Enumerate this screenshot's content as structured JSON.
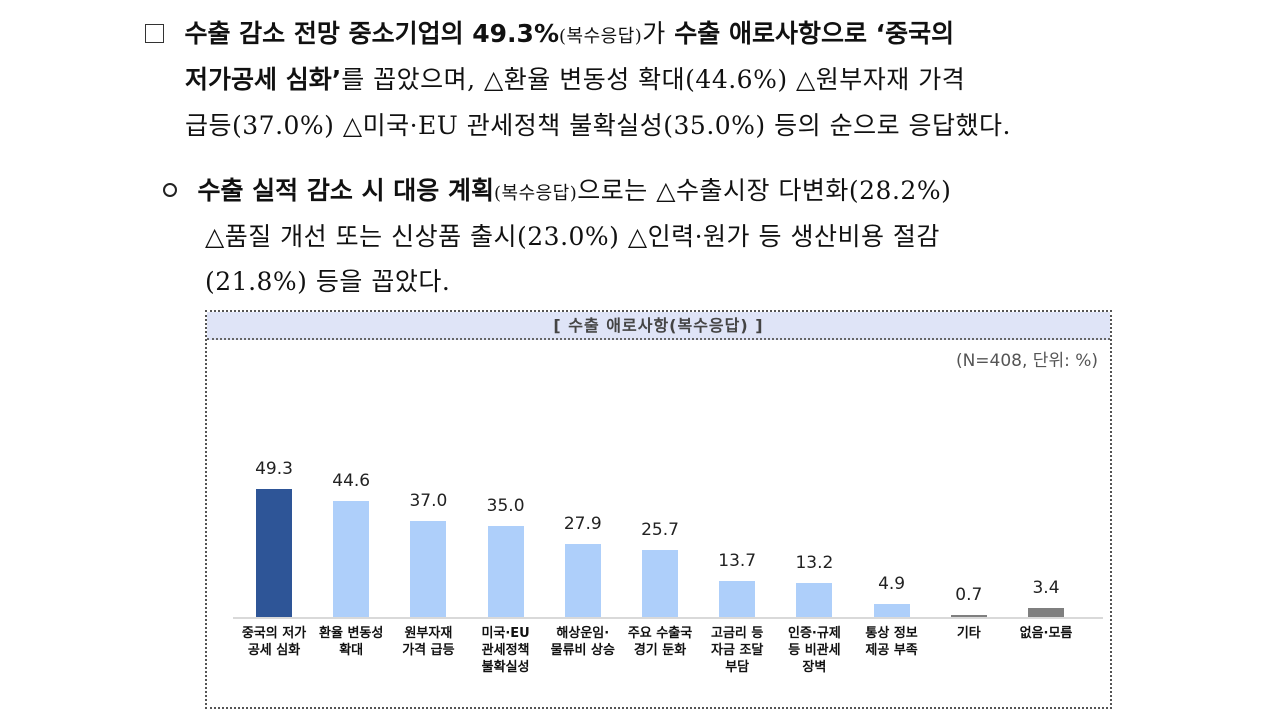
{
  "paragraph1": {
    "bullet": "box-bullet",
    "line1": {
      "bold1": "수출 감소 전망 중소기업의 49.3%",
      "small1": "(복수응답)",
      "normal1": "가 ",
      "bold2": "수출 애로사항으로 ‘중국의"
    },
    "line2": {
      "bold1": "저가공세 심화’",
      "normal1": "를 꼽았으며, △환율 변동성 확대(44.6%) △원부자재 가격"
    },
    "line3": {
      "normal1": "급등(37.0%) △미국·EU 관세정책 불확실성(35.0%) 등의 순으로 응답했다."
    }
  },
  "paragraph2": {
    "bullet": "circle-bullet",
    "line1": {
      "bold1": "수출 실적 감소 시 대응 계획",
      "small1": "(복수응답)",
      "normal1": "으로는 △수출시장 다변화(28.2%)"
    },
    "line2": {
      "normal1": "△품질 개선 또는 신상품 출시(23.0%) △인력·원가 등 생산비용 절감"
    },
    "line3": {
      "normal1": "(21.8%) 등을 꼽았다."
    }
  },
  "chart": {
    "header": "[ 수출 애로사항(복수응답) ]",
    "note": "(N=408, 단위: %)",
    "colors": {
      "highlight": "#2e5597",
      "normal": "#aecffa",
      "other": "#7f7f7f"
    },
    "bars": [
      {
        "label": "중국의 저가\n공세 심화",
        "value": "49.3",
        "color": "#2e5597"
      },
      {
        "label": "환율 변동성\n확대",
        "value": "44.6",
        "color": "#aecffa"
      },
      {
        "label": "원부자재\n가격 급등",
        "value": "37.0",
        "color": "#aecffa"
      },
      {
        "label": "미국·EU\n관세정책\n불확실성",
        "value": "35.0",
        "color": "#aecffa"
      },
      {
        "label": "해상운임·\n물류비 상승",
        "value": "27.9",
        "color": "#aecffa"
      },
      {
        "label": "주요 수출국\n경기 둔화",
        "value": "25.7",
        "color": "#aecffa"
      },
      {
        "label": "고금리 등\n자금 조달\n부담",
        "value": "13.7",
        "color": "#aecffa"
      },
      {
        "label": "인증·규제\n등 비관세\n장벽",
        "value": "13.2",
        "color": "#aecffa"
      },
      {
        "label": "통상 정보\n제공 부족",
        "value": "4.9",
        "color": "#aecffa"
      },
      {
        "label": "기타",
        "value": "0.7",
        "color": "#7f7f7f"
      },
      {
        "label": "없음·모름",
        "value": "3.4",
        "color": "#7f7f7f"
      }
    ]
  },
  "chart_data": {
    "type": "bar",
    "title": "[ 수출 애로사항(복수응답) ]",
    "subtitle": "(N=408, 단위: %)",
    "categories": [
      "중국의 저가 공세 심화",
      "환율 변동성 확대",
      "원부자재 가격 급등",
      "미국·EU 관세정책 불확실성",
      "해상운임·물류비 상승",
      "주요 수출국 경기 둔화",
      "고금리 등 자금 조달 부담",
      "인증·규제 등 비관세 장벽",
      "통상 정보 제공 부족",
      "기타",
      "없음·모름"
    ],
    "values": [
      49.3,
      44.6,
      37.0,
      35.0,
      27.9,
      25.7,
      13.7,
      13.2,
      4.9,
      0.7,
      3.4
    ],
    "xlabel": "",
    "ylabel": "%",
    "ylim": [
      0,
      50
    ],
    "grid": false,
    "legend": "none",
    "data_labels": true
  }
}
